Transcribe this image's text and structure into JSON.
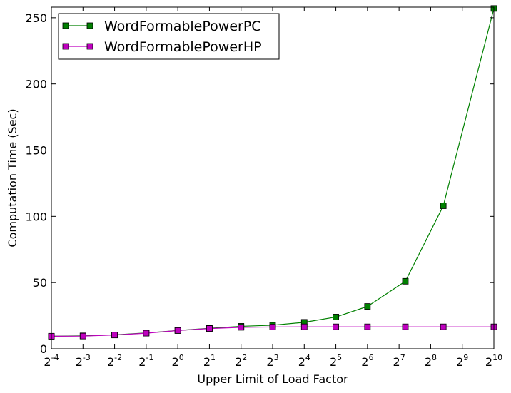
{
  "chart_data": {
    "type": "line",
    "title": "",
    "xlabel": "Upper Limit of Load Factor",
    "ylabel": "Computation Time (Sec)",
    "x": [
      -4,
      -3,
      -2,
      -1,
      0,
      1,
      2,
      3,
      4,
      5,
      6,
      7.2,
      8.4,
      10
    ],
    "x_scale": "log2",
    "xlim": [
      -4,
      10
    ],
    "xticks": [
      -4,
      -3,
      -2,
      -1,
      0,
      1,
      2,
      3,
      4,
      5,
      6,
      7,
      8,
      9,
      10
    ],
    "xtick_base": "2",
    "xtick_exponents": [
      "-4",
      "-3",
      "-2",
      "-1",
      "0",
      "1",
      "2",
      "3",
      "4",
      "5",
      "6",
      "7",
      "8",
      "9",
      "10"
    ],
    "ylim": [
      0,
      258
    ],
    "yticks": [
      0,
      50,
      100,
      150,
      200,
      250
    ],
    "ytick_labels": [
      "0",
      "50",
      "100",
      "150",
      "200",
      "250"
    ],
    "legend_position": "top-left",
    "grid": false,
    "series": [
      {
        "name": "WordFormablePowerPC",
        "color": "#008000",
        "marker": "square",
        "values": [
          9.5,
          9.8,
          10.5,
          12,
          13.8,
          15.5,
          17,
          17.8,
          20,
          24,
          32,
          51,
          108,
          257
        ]
      },
      {
        "name": "WordFormablePowerHP",
        "color": "#bf00bf",
        "marker": "square",
        "values": [
          9.5,
          9.6,
          10.4,
          11.8,
          13.8,
          15.3,
          16.2,
          16.5,
          16.6,
          16.6,
          16.6,
          16.6,
          16.6,
          16.6
        ]
      }
    ]
  }
}
